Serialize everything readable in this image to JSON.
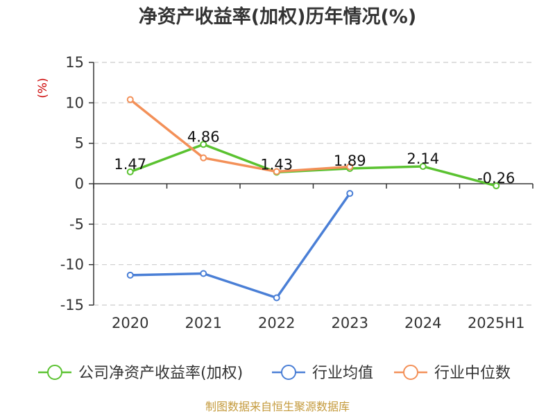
{
  "chart_data": {
    "type": "line",
    "title": "净资产收益率(加权)历年情况(%)",
    "ylabel": "(%)",
    "categories": [
      "2020",
      "2021",
      "2022",
      "2023",
      "2024",
      "2025H1"
    ],
    "yticks": [
      15,
      10,
      5,
      0,
      -5,
      -10,
      -15
    ],
    "ylim": [
      -15,
      15
    ],
    "grid": true,
    "legend_position": "bottom",
    "series": [
      {
        "name": "公司净资产收益率(加权)",
        "color": "#5ac230",
        "values": [
          1.47,
          4.86,
          1.43,
          1.89,
          2.14,
          -0.26
        ],
        "labels": [
          "1.47",
          "4.86",
          "1.43",
          "1.89",
          "2.14",
          "-0.26"
        ]
      },
      {
        "name": "行业均值",
        "color": "#4a7fd6",
        "values": [
          -11.3,
          -11.1,
          -14.1,
          -1.2,
          null,
          null
        ]
      },
      {
        "name": "行业中位数",
        "color": "#f39058",
        "values": [
          10.4,
          3.2,
          1.5,
          2.1,
          null,
          null
        ]
      }
    ]
  },
  "source": "制图数据来自恒生聚源数据库"
}
